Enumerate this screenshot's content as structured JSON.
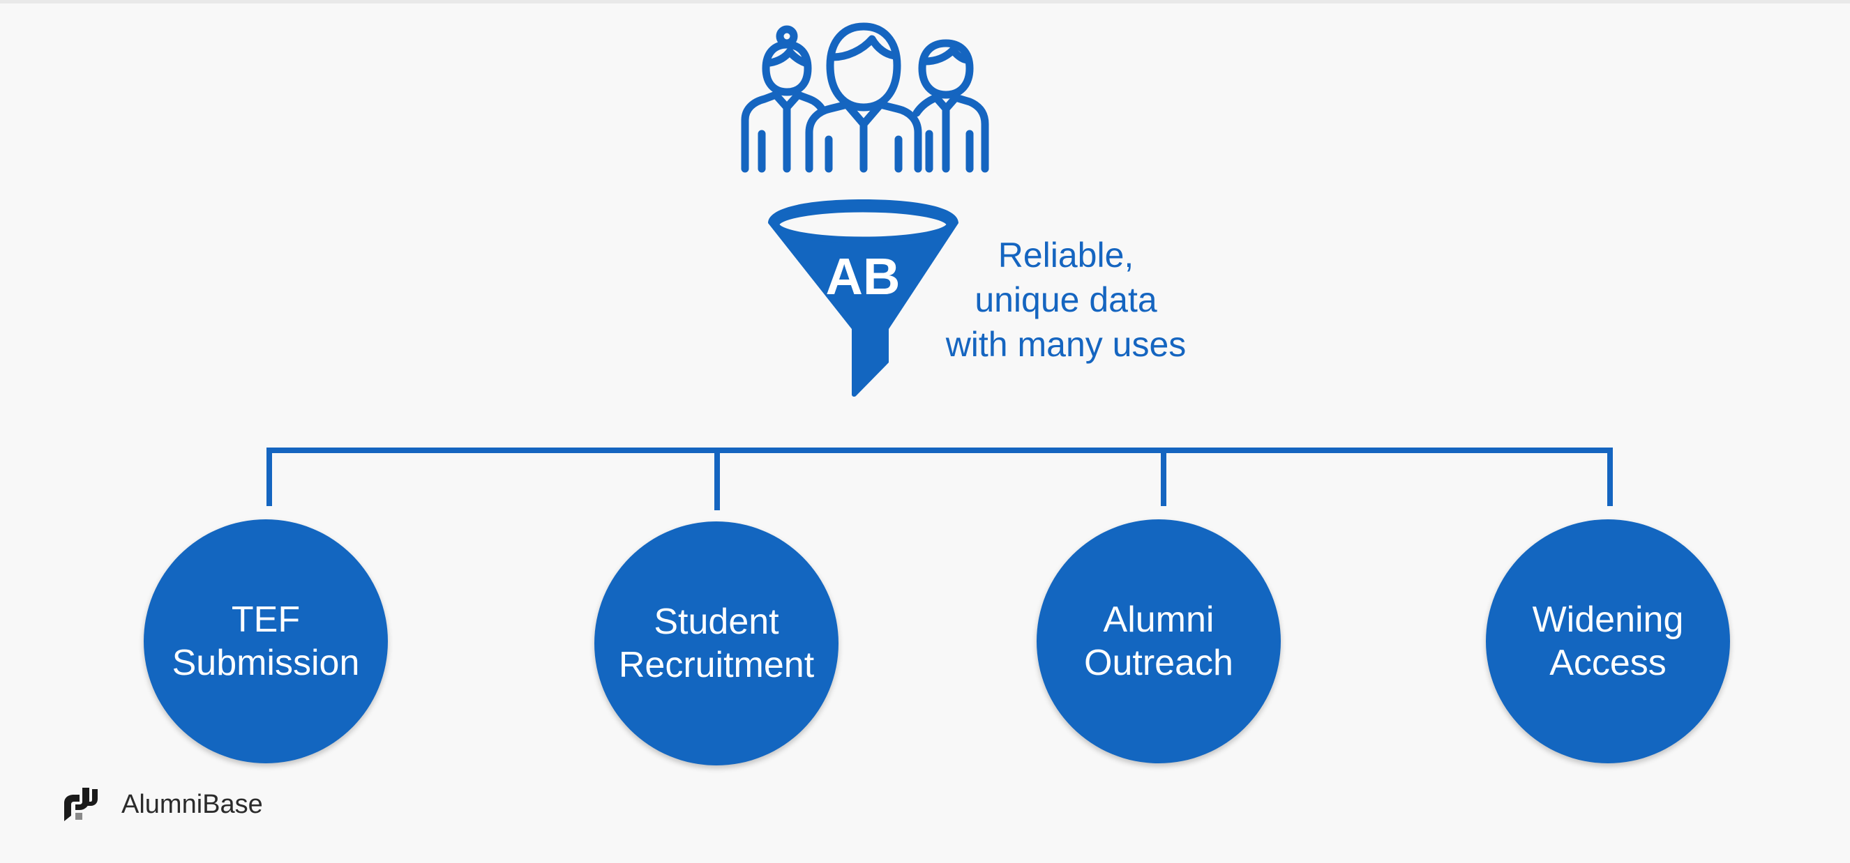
{
  "funnel": {
    "badge": "AB"
  },
  "caption": {
    "lines": [
      "Reliable,",
      "unique data",
      "with many uses"
    ]
  },
  "uses": [
    {
      "lines": [
        "TEF",
        "Submission"
      ]
    },
    {
      "lines": [
        "Student",
        "Recruitment"
      ]
    },
    {
      "lines": [
        "Alumni",
        "Outreach"
      ]
    },
    {
      "lines": [
        "Widening",
        "Access"
      ]
    }
  ],
  "footer": {
    "brand_name": "AlumniBase",
    "logo_icon": "alumnibase-logo-icon"
  },
  "colors": {
    "primary_blue": "#1366c0",
    "background": "#f8f8f8",
    "text_on_blue": "#ffffff",
    "footer_text": "#2b2b2b"
  }
}
